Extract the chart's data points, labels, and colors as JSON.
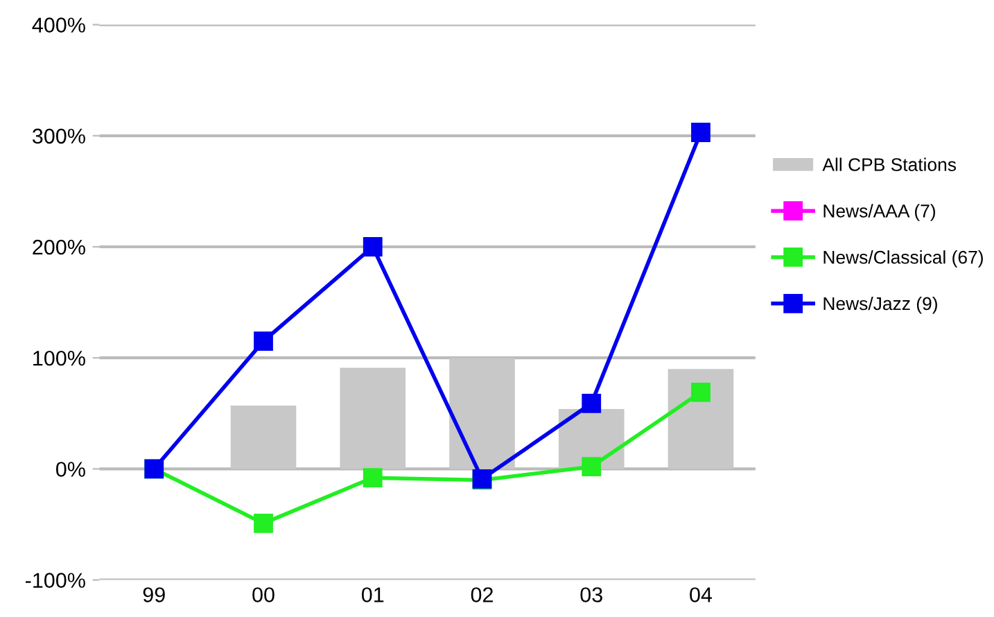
{
  "chart_data": {
    "type": "bar",
    "categories": [
      "99",
      "00",
      "01",
      "02",
      "03",
      "04"
    ],
    "series": [
      {
        "name": "All CPB Stations",
        "color": "#c8c8c8",
        "values": [
          0,
          57,
          91,
          100,
          54,
          90
        ]
      },
      {
        "name": "News/AAA (7)",
        "type": "line",
        "color": "#ff00ff",
        "values": [
          null,
          null,
          null,
          null,
          null,
          null
        ]
      },
      {
        "name": "News/Classical (67)",
        "type": "line",
        "color": "#22ee22",
        "values": [
          0,
          -49,
          -8,
          -10,
          2,
          69
        ]
      },
      {
        "name": "News/Jazz (9)",
        "type": "line",
        "color": "#0000ee",
        "values": [
          0,
          115,
          200,
          -9,
          59,
          303
        ]
      }
    ],
    "ylim": [
      -100,
      400
    ],
    "yticks": [
      {
        "value": -100,
        "label": "-100%"
      },
      {
        "value": 0,
        "label": "0%"
      },
      {
        "value": 100,
        "label": "100%"
      },
      {
        "value": 200,
        "label": "200%"
      },
      {
        "value": 300,
        "label": "300%"
      },
      {
        "value": 400,
        "label": "400%"
      }
    ],
    "grid": "y",
    "legend": "right",
    "marker": "square",
    "line_style": "solid"
  }
}
